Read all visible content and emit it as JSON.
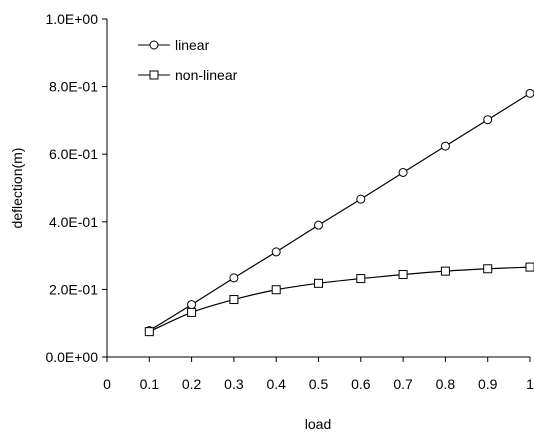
{
  "chart_data": {
    "type": "line",
    "xlabel": "load",
    "ylabel": "deflection(m)",
    "xlim": [
      0,
      1
    ],
    "ylim": [
      0,
      1
    ],
    "x_ticks": [
      "0",
      "0.1",
      "0.2",
      "0.3",
      "0.4",
      "0.5",
      "0.6",
      "0.7",
      "0.8",
      "0.9",
      "1"
    ],
    "y_ticks": [
      "0.0E+00",
      "2.0E-01",
      "4.0E-01",
      "6.0E-01",
      "8.0E-01",
      "1.0E+00"
    ],
    "grid": false,
    "legend_position": "top-left",
    "x": [
      0.1,
      0.2,
      0.3,
      0.4,
      0.5,
      0.6,
      0.7,
      0.8,
      0.9,
      1.0
    ],
    "series": [
      {
        "name": "linear",
        "marker": "circle",
        "values": [
          0.078,
          0.155,
          0.234,
          0.311,
          0.39,
          0.467,
          0.546,
          0.624,
          0.702,
          0.78
        ]
      },
      {
        "name": "non-linear",
        "marker": "square",
        "values": [
          0.075,
          0.132,
          0.17,
          0.199,
          0.218,
          0.232,
          0.244,
          0.254,
          0.261,
          0.266
        ]
      }
    ],
    "line_color": "#000000"
  }
}
